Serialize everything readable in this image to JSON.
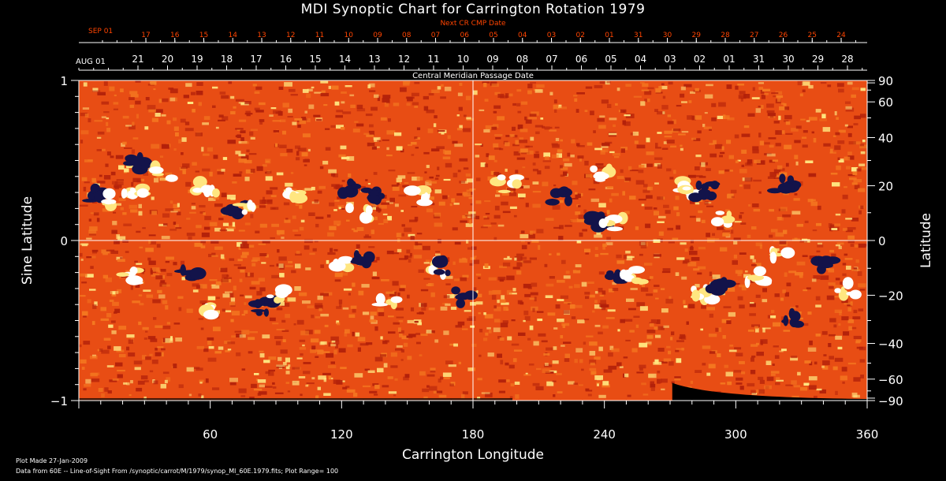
{
  "title": "MDI Synoptic Chart for Carrington Rotation 1979",
  "footer": {
    "line1": "Plot Made 27-Jan-2009",
    "line2": "Data from 60E -- Line-of-Sight From /synoptic/carrot/M/1979/synop_Ml_60E.1979.fits; Plot Range= 100"
  },
  "colors": {
    "background": "#000000",
    "next_cr_text": "#ff4400",
    "axis_text": "#ffffff",
    "map_base": "#e84d14",
    "map_dark": "#b3210a",
    "map_bright": "#ffe680",
    "negative_polarity": "#13134a",
    "positive_polarity": "#ffffff",
    "grid": "#ffffff"
  },
  "chart_data": {
    "type": "heatmap",
    "title": "MDI Synoptic Chart for Carrington Rotation 1979",
    "xlabel": "Carrington Longitude",
    "ylabel_left": "Sine Latitude",
    "ylabel_right": "Latitude",
    "xlim": [
      0,
      360
    ],
    "ylim": [
      -1,
      1
    ],
    "x_ticks": [
      60,
      120,
      180,
      240,
      300,
      360
    ],
    "y_left_ticks": [
      {
        "value": 1,
        "label": "1"
      },
      {
        "value": 0,
        "label": "0"
      },
      {
        "value": -1,
        "label": "−1"
      }
    ],
    "y_right_ticks": [
      90,
      60,
      40,
      20,
      0,
      -20,
      -40,
      -60,
      -90
    ],
    "y_right_tick_labels": [
      "90",
      "60",
      "40",
      "20",
      "0",
      "−20",
      "−40",
      "−60",
      "−90"
    ],
    "grid_lines": {
      "longitude": 180,
      "sine_latitude": 0
    },
    "plot_range_gauss": 100,
    "top_axes": {
      "next_cr_label": "Next CR CMP Date",
      "next_cr_month": "SEP 01",
      "next_cr_dates": [
        "17",
        "16",
        "15",
        "14",
        "13",
        "12",
        "11",
        "10",
        "09",
        "08",
        "07",
        "06",
        "05",
        "04",
        "03",
        "02",
        "01",
        "31",
        "30",
        "29",
        "28",
        "27",
        "26",
        "25",
        "24"
      ],
      "cmp_label": "Central Meridian Passage Date",
      "cmp_month": "AUG 01",
      "cmp_dates": [
        "21",
        "20",
        "19",
        "18",
        "17",
        "16",
        "15",
        "14",
        "13",
        "12",
        "11",
        "10",
        "09",
        "08",
        "07",
        "06",
        "05",
        "04",
        "03",
        "02",
        "01",
        "31",
        "30",
        "29",
        "28"
      ]
    },
    "active_regions": [
      {
        "lon": 8,
        "sinlat": 0.28,
        "polarity": "neg"
      },
      {
        "lon": 14,
        "sinlat": 0.26,
        "polarity": "pos"
      },
      {
        "lon": 27,
        "sinlat": 0.48,
        "polarity": "neg"
      },
      {
        "lon": 25,
        "sinlat": 0.3,
        "polarity": "pos"
      },
      {
        "lon": 38,
        "sinlat": 0.42,
        "polarity": "pos"
      },
      {
        "lon": 58,
        "sinlat": 0.34,
        "polarity": "pos"
      },
      {
        "lon": 72,
        "sinlat": 0.2,
        "polarity": "neg"
      },
      {
        "lon": 77,
        "sinlat": 0.2,
        "polarity": "pos"
      },
      {
        "lon": 100,
        "sinlat": 0.3,
        "polarity": "pos"
      },
      {
        "lon": 122,
        "sinlat": 0.33,
        "polarity": "neg"
      },
      {
        "lon": 128,
        "sinlat": 0.16,
        "polarity": "pos"
      },
      {
        "lon": 135,
        "sinlat": 0.3,
        "polarity": "neg"
      },
      {
        "lon": 155,
        "sinlat": 0.27,
        "polarity": "pos"
      },
      {
        "lon": 122,
        "sinlat": -0.16,
        "polarity": "pos"
      },
      {
        "lon": 128,
        "sinlat": -0.1,
        "polarity": "neg"
      },
      {
        "lon": 142,
        "sinlat": -0.38,
        "polarity": "pos"
      },
      {
        "lon": 162,
        "sinlat": -0.17,
        "polarity": "pos"
      },
      {
        "lon": 165,
        "sinlat": -0.16,
        "polarity": "neg"
      },
      {
        "lon": 176,
        "sinlat": -0.35,
        "polarity": "neg"
      },
      {
        "lon": 50,
        "sinlat": -0.22,
        "polarity": "neg"
      },
      {
        "lon": 60,
        "sinlat": -0.45,
        "polarity": "pos"
      },
      {
        "lon": 84,
        "sinlat": -0.42,
        "polarity": "neg"
      },
      {
        "lon": 90,
        "sinlat": -0.35,
        "polarity": "pos"
      },
      {
        "lon": 23,
        "sinlat": -0.23,
        "polarity": "pos"
      },
      {
        "lon": 220,
        "sinlat": 0.28,
        "polarity": "neg"
      },
      {
        "lon": 238,
        "sinlat": 0.42,
        "polarity": "pos"
      },
      {
        "lon": 238,
        "sinlat": 0.12,
        "polarity": "neg"
      },
      {
        "lon": 244,
        "sinlat": 0.1,
        "polarity": "pos"
      },
      {
        "lon": 279,
        "sinlat": 0.33,
        "polarity": "pos"
      },
      {
        "lon": 286,
        "sinlat": 0.31,
        "polarity": "neg"
      },
      {
        "lon": 294,
        "sinlat": 0.13,
        "polarity": "pos"
      },
      {
        "lon": 246,
        "sinlat": -0.22,
        "polarity": "neg"
      },
      {
        "lon": 253,
        "sinlat": -0.22,
        "polarity": "pos"
      },
      {
        "lon": 285,
        "sinlat": -0.33,
        "polarity": "pos"
      },
      {
        "lon": 292,
        "sinlat": -0.3,
        "polarity": "neg"
      },
      {
        "lon": 310,
        "sinlat": -0.22,
        "polarity": "pos"
      },
      {
        "lon": 340,
        "sinlat": -0.14,
        "polarity": "neg"
      },
      {
        "lon": 320,
        "sinlat": -0.1,
        "polarity": "pos"
      },
      {
        "lon": 350,
        "sinlat": -0.3,
        "polarity": "pos"
      },
      {
        "lon": 325,
        "sinlat": -0.5,
        "polarity": "neg"
      },
      {
        "lon": 322,
        "sinlat": 0.35,
        "polarity": "neg"
      },
      {
        "lon": 196,
        "sinlat": 0.35,
        "polarity": "pos"
      }
    ]
  }
}
